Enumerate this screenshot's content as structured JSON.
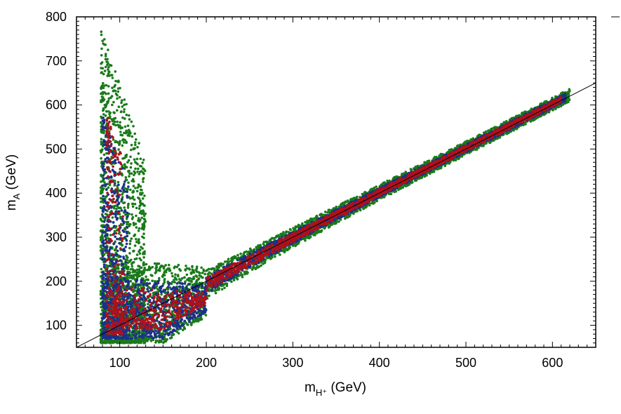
{
  "chart_data": {
    "type": "scatter",
    "title": "",
    "xlabel": {
      "main": "m",
      "sub": "H⁺",
      "unit": " (GeV)"
    },
    "ylabel": {
      "main": "m",
      "sub": "A",
      "unit": " (GeV)"
    },
    "xlim": [
      50,
      650
    ],
    "ylim": [
      50,
      800
    ],
    "xticks": [
      100,
      200,
      300,
      400,
      500,
      600
    ],
    "yticks": [
      100,
      200,
      300,
      400,
      500,
      600,
      700,
      800
    ],
    "grid": false,
    "legend": "none",
    "reference_line": {
      "from": [
        50,
        50
      ],
      "to": [
        650,
        650
      ],
      "color": "#000000"
    },
    "series": [
      {
        "color": "#1a7a1a",
        "regions": [
          {
            "x": [
              78,
              130
            ],
            "y": [
              60,
              780
            ]
          },
          {
            "x": [
              80,
              200
            ],
            "y": [
              60,
              250
            ]
          },
          {
            "x": [
              200,
              620
            ],
            "y": [
              180,
              630
            ],
            "band": "diagonal"
          }
        ]
      },
      {
        "color": "#1c2f8c",
        "regions": [
          {
            "x": [
              80,
              110
            ],
            "y": [
              70,
              600
            ]
          },
          {
            "x": [
              80,
              200
            ],
            "y": [
              70,
              210
            ]
          },
          {
            "x": [
              200,
              615
            ],
            "y": [
              170,
              620
            ],
            "band": "diagonal"
          }
        ]
      },
      {
        "color": "#b0101a",
        "regions": [
          {
            "x": [
              85,
              105
            ],
            "y": [
              80,
              590
            ]
          },
          {
            "x": [
              90,
              200
            ],
            "y": [
              90,
              190
            ]
          },
          {
            "x": [
              200,
              610
            ],
            "y": [
              180,
              610
            ],
            "band": "diagonal"
          }
        ]
      }
    ]
  }
}
